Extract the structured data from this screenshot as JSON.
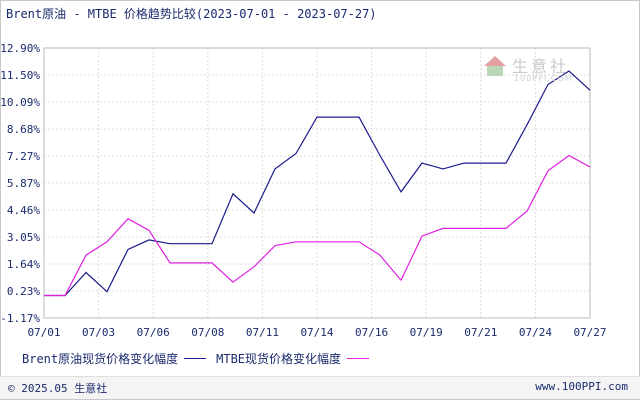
{
  "title": "Brent原油 - MTBE 价格趋势比较(2023-07-01 - 2023-07-27)",
  "watermark": {
    "name": "生意社",
    "url": "100PPI.COM"
  },
  "footer": {
    "copyright": "© 2025.05 生意社",
    "site": "www.100PPI.com"
  },
  "chart_data": {
    "type": "line",
    "title": "Brent原油 - MTBE 价格趋势比较(2023-07-01 - 2023-07-27)",
    "y_ticks": [
      "12.90%",
      "11.50%",
      "10.09%",
      "8.68%",
      "7.27%",
      "5.87%",
      "4.46%",
      "3.05%",
      "1.64%",
      "0.23%",
      "-1.17%"
    ],
    "x_ticks": [
      "07/01",
      "07/03",
      "07/06",
      "07/08",
      "07/11",
      "07/14",
      "07/16",
      "07/19",
      "07/21",
      "07/24",
      "07/27"
    ],
    "ylim": [
      -1.17,
      12.9
    ],
    "grid": true,
    "legend_position": "bottom",
    "x": [
      "07/01",
      "07/02",
      "07/03",
      "07/04",
      "07/05",
      "07/06",
      "07/07",
      "07/08",
      "07/09",
      "07/10",
      "07/11",
      "07/12",
      "07/13",
      "07/14",
      "07/15",
      "07/16",
      "07/17",
      "07/18",
      "07/19",
      "07/20",
      "07/21",
      "07/22",
      "07/23",
      "07/24",
      "07/25",
      "07/26",
      "07/27"
    ],
    "series": [
      {
        "name": "Brent原油现货价格变化幅度",
        "color": "#1a1a8c",
        "values": [
          0,
          0,
          1.2,
          0.2,
          2.4,
          2.9,
          2.7,
          2.7,
          2.7,
          5.3,
          4.3,
          6.6,
          7.4,
          9.3,
          9.3,
          9.3,
          7.3,
          5.4,
          6.9,
          6.6,
          6.9,
          6.9,
          6.9,
          8.9,
          11.0,
          11.7,
          10.7
        ]
      },
      {
        "name": "MTBE现货价格变化幅度",
        "color": "#e020e0",
        "values": [
          0,
          0,
          2.1,
          2.8,
          4.0,
          3.4,
          1.7,
          1.7,
          1.7,
          0.7,
          1.5,
          2.6,
          2.8,
          2.8,
          2.8,
          2.8,
          2.1,
          0.8,
          3.1,
          3.5,
          3.5,
          3.5,
          3.5,
          4.4,
          6.5,
          7.3,
          6.7
        ]
      }
    ]
  }
}
